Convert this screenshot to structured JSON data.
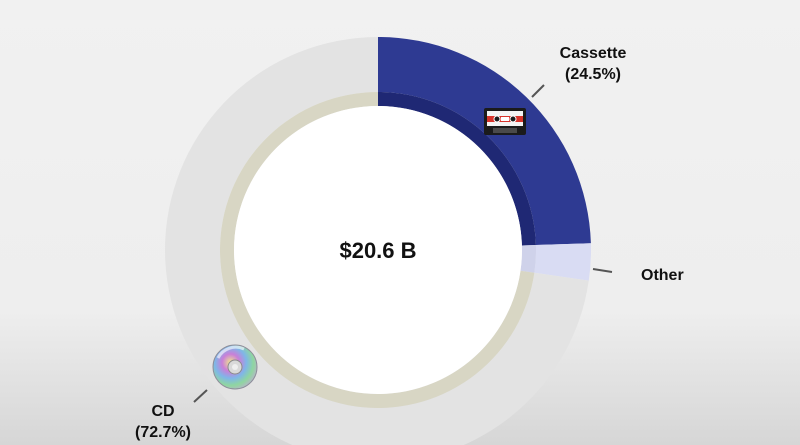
{
  "chart_data": {
    "type": "pie",
    "center_label": "$20.6 B",
    "slices": [
      {
        "name": "Cassette",
        "percent_label": "(24.5%)",
        "value": 24.5,
        "color": "#2e3a92",
        "inner_color": "#1f2874",
        "icon": "cassette-tape-icon"
      },
      {
        "name": "Other",
        "percent_label": "",
        "value": 2.8,
        "color": "#d9dcf3",
        "inner_color": "#cfd2ea",
        "icon": ""
      },
      {
        "name": "CD",
        "percent_label": "(72.7%)",
        "value": 72.7,
        "color": "#e3e3e3",
        "inner_color": "#d8d6c4",
        "icon": "compact-disc-icon"
      }
    ],
    "legend": "none"
  }
}
